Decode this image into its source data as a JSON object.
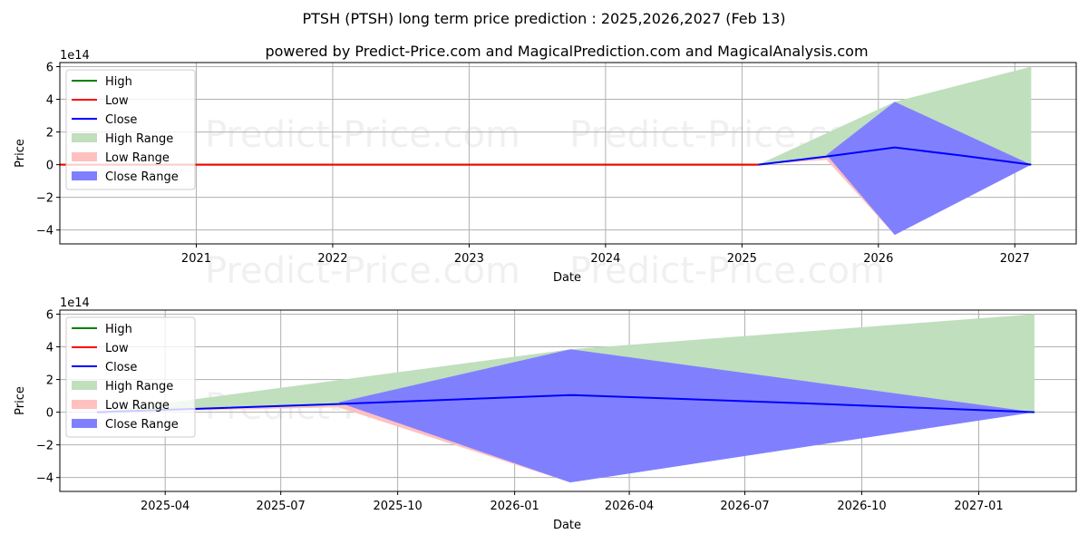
{
  "title": "PTSH (PTSH) long term price prediction : 2025,2026,2027 (Feb 13)",
  "subtitle": "powered by Predict-Price.com and MagicalPrediction.com and MagicalAnalysis.com",
  "watermark": "Predict-Price.com",
  "colors": {
    "high": "#008000",
    "low": "#ff0000",
    "close": "#0000ff",
    "high_range": "#c0dfbd",
    "low_range": "#ffc0c0",
    "close_range": "#8080ff"
  },
  "chart_data": [
    {
      "type": "area",
      "name": "top",
      "xlabel": "Date",
      "ylabel": "Price",
      "y_scale_label": "1e14",
      "grid": true,
      "legend_position": "upper-left",
      "xlim": [
        2020.0,
        2027.45
      ],
      "ylim": [
        -4.85,
        6.25
      ],
      "x_ticks": [
        2021,
        2022,
        2023,
        2024,
        2025,
        2026,
        2027
      ],
      "x_tick_labels": [
        "2021",
        "2022",
        "2023",
        "2024",
        "2025",
        "2026",
        "2027"
      ],
      "y_ticks": [
        -4,
        -2,
        0,
        2,
        4,
        6
      ],
      "y_tick_labels": [
        "−4",
        "−2",
        "0",
        "2",
        "4",
        "6"
      ],
      "legend": [
        "High",
        "Low",
        "Close",
        "High Range",
        "Low Range",
        "Close Range"
      ],
      "series": [
        {
          "name": "High",
          "x": [
            2020.0,
            2025.12
          ],
          "values": [
            0,
            0
          ]
        },
        {
          "name": "Low",
          "x": [
            2020.0,
            2025.12
          ],
          "values": [
            0,
            0
          ]
        },
        {
          "name": "Close",
          "x": [
            2025.12,
            2025.62,
            2026.12,
            2026.62,
            2027.12
          ],
          "values": [
            0,
            0.5,
            1.05,
            0.55,
            0
          ]
        },
        {
          "name": "High Range",
          "x": [
            2025.12,
            2026.12,
            2027.12
          ],
          "upper": [
            0,
            3.85,
            6.0
          ],
          "lower": [
            0,
            0.6,
            0
          ]
        },
        {
          "name": "Low Range",
          "x": [
            2025.12,
            2025.62,
            2026.12
          ],
          "upper": [
            0,
            0.4,
            0
          ],
          "lower": [
            0,
            0.3,
            -4.3
          ]
        },
        {
          "name": "Close Range",
          "x": [
            2025.12,
            2025.62,
            2026.12,
            2027.12
          ],
          "upper": [
            0,
            0.6,
            3.85,
            0
          ],
          "lower": [
            0,
            0.6,
            -4.3,
            0
          ]
        }
      ]
    },
    {
      "type": "area",
      "name": "bottom",
      "xlabel": "Date",
      "ylabel": "Price",
      "y_scale_label": "1e14",
      "grid": true,
      "legend_position": "upper-left",
      "xlim": [
        2025.02,
        2027.21
      ],
      "ylim": [
        -4.85,
        6.25
      ],
      "x_ticks": [
        2025.247,
        2025.496,
        2025.748,
        2026.0,
        2026.247,
        2026.496,
        2026.748,
        2027.0
      ],
      "x_tick_labels": [
        "2025-04",
        "2025-07",
        "2025-10",
        "2026-01",
        "2026-04",
        "2026-07",
        "2026-10",
        "2027-01"
      ],
      "y_ticks": [
        -4,
        -2,
        0,
        2,
        4,
        6
      ],
      "y_tick_labels": [
        "−4",
        "−2",
        "0",
        "2",
        "4",
        "6"
      ],
      "legend": [
        "High",
        "Low",
        "Close",
        "High Range",
        "Low Range",
        "Close Range"
      ],
      "series": [
        {
          "name": "High",
          "x": [
            2025.1,
            2025.12
          ],
          "values": [
            0,
            0
          ]
        },
        {
          "name": "Low",
          "x": [
            2025.1,
            2025.12
          ],
          "values": [
            0,
            0
          ]
        },
        {
          "name": "Close",
          "x": [
            2025.1,
            2025.62,
            2026.12,
            2026.62,
            2027.12
          ],
          "values": [
            0,
            0.5,
            1.05,
            0.55,
            0
          ]
        },
        {
          "name": "High Range",
          "x": [
            2025.1,
            2026.12,
            2027.12
          ],
          "upper": [
            0,
            3.85,
            6.0
          ],
          "lower": [
            0,
            0.6,
            0
          ]
        },
        {
          "name": "Low Range",
          "x": [
            2025.1,
            2025.62,
            2026.12
          ],
          "upper": [
            0,
            0.4,
            0
          ],
          "lower": [
            0,
            0.3,
            -4.3
          ]
        },
        {
          "name": "Close Range",
          "x": [
            2025.1,
            2025.62,
            2026.12,
            2027.12
          ],
          "upper": [
            0,
            0.6,
            3.85,
            0
          ],
          "lower": [
            0,
            0.6,
            -4.3,
            0
          ]
        }
      ]
    }
  ]
}
